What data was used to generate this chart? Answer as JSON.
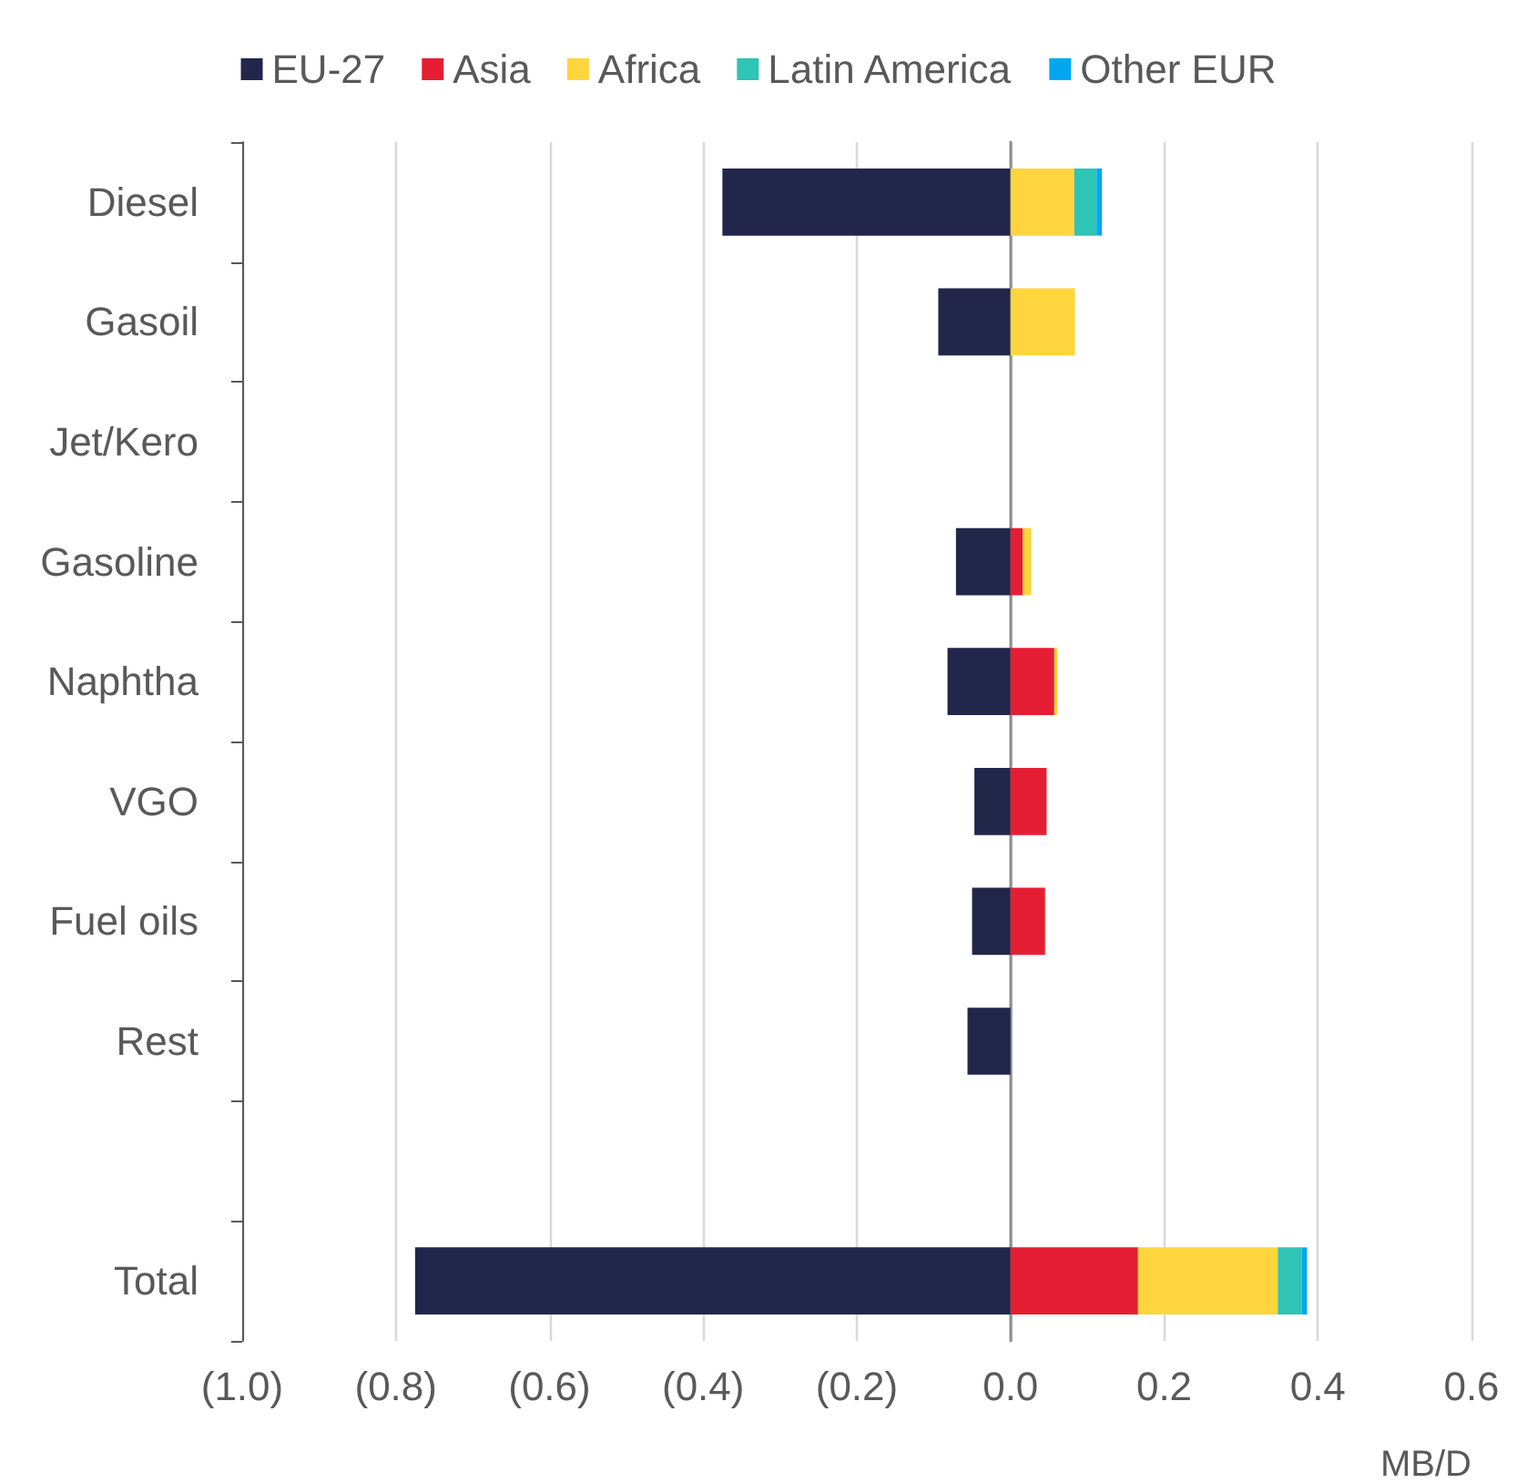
{
  "chart_data": {
    "type": "bar",
    "orientation": "horizontal",
    "stacked": true,
    "xlabel": "MB/D",
    "categories": [
      "Diesel",
      "Gasoil",
      "Jet/Kero",
      "Gasoline",
      "Naphtha",
      "VGO",
      "Fuel oils",
      "Rest",
      null,
      "Total"
    ],
    "series": [
      {
        "name": "EU-27",
        "color": "#22264b",
        "values": [
          -0.375,
          -0.094,
          null,
          -0.071,
          -0.082,
          -0.047,
          -0.05,
          -0.056,
          null,
          -0.775
        ]
      },
      {
        "name": "Asia",
        "color": "#e61e33",
        "values": [
          null,
          null,
          null,
          0.016,
          0.057,
          0.047,
          0.045,
          null,
          null,
          0.166
        ]
      },
      {
        "name": "Africa",
        "color": "#fed53c",
        "values": [
          0.083,
          0.084,
          null,
          0.011,
          0.004,
          null,
          null,
          null,
          null,
          0.182
        ]
      },
      {
        "name": "Latin America",
        "color": "#2ec4b6",
        "values": [
          0.029,
          null,
          null,
          null,
          null,
          null,
          null,
          null,
          null,
          0.031
        ]
      },
      {
        "name": "Other EUR",
        "color": "#00a7f0",
        "values": [
          0.007,
          null,
          null,
          null,
          null,
          null,
          null,
          null,
          null,
          0.007
        ]
      }
    ],
    "xlim": [
      -1.0,
      0.6
    ],
    "xticks": [
      {
        "value": -1.0,
        "label": "(1.0)"
      },
      {
        "value": -0.8,
        "label": "(0.8)"
      },
      {
        "value": -0.6,
        "label": "(0.6)"
      },
      {
        "value": -0.4,
        "label": "(0.4)"
      },
      {
        "value": -0.2,
        "label": "(0.2)"
      },
      {
        "value": 0,
        "label": "0.0"
      },
      {
        "value": 0.2,
        "label": "0.2"
      },
      {
        "value": 0.4,
        "label": "0.4"
      },
      {
        "value": 0.6,
        "label": "0.6"
      }
    ],
    "grid": "x",
    "legend": "top"
  }
}
